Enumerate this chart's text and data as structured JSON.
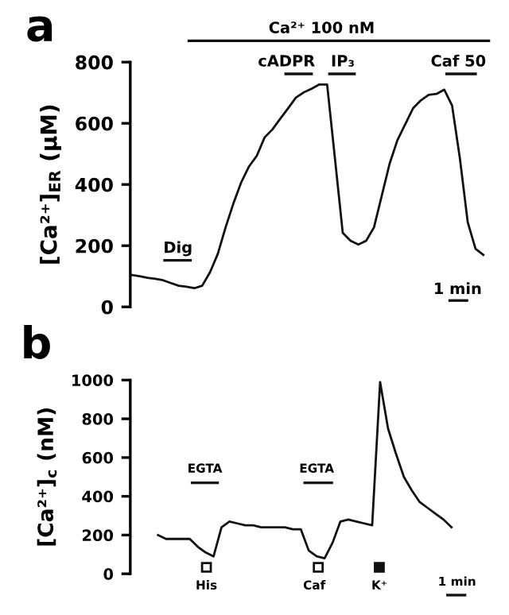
{
  "chart_data": [
    {
      "type": "line",
      "ylabel": "[Ca²⁺]$_{ER}$ (μM)",
      "categories": [
        null,
        null,
        null,
        null,
        null,
        null,
        null,
        null,
        null,
        null,
        null,
        null,
        null,
        null,
        null,
        null,
        null,
        null,
        null,
        null,
        null,
        null,
        null,
        null,
        null,
        null,
        null,
        null,
        null,
        null,
        null,
        null,
        null,
        null,
        null,
        null,
        null,
        null,
        null,
        null,
        null,
        null,
        null,
        null,
        null,
        null
      ],
      "series": [
        {
          "color": "#111111",
          "values": [
            104,
            100,
            95,
            92,
            87,
            78,
            69,
            66,
            61,
            69,
            113,
            173,
            260,
            338,
            407,
            459,
            494,
            554,
            580,
            615,
            649,
            684,
            701,
            713,
            727,
            727,
            485,
            242,
            216,
            204,
            216,
            260,
            364,
            468,
            545,
            597,
            649,
            675,
            693,
            696,
            710,
            658,
            485,
            277,
            190,
            170
          ]
        }
      ],
      "ylim": [
        0,
        800
      ],
      "yticks": [
        0,
        200,
        400,
        600,
        800
      ],
      "tick_labels": "y",
      "grid": false,
      "annotations": [
        "a",
        "Ca²⁺ 100 nM",
        "cADPR",
        "IP₃",
        "Caf 50",
        "Dig",
        "1 min"
      ]
    },
    {
      "type": "line",
      "ylabel": "[Ca²⁺]$_{c}$ (nM)",
      "categories": [
        null,
        null,
        null,
        null,
        null,
        null,
        null,
        null,
        null,
        null,
        null,
        null,
        null,
        null,
        null,
        null,
        null,
        null,
        null,
        null,
        null,
        null,
        null,
        null,
        null,
        null,
        null,
        null,
        null,
        null,
        null,
        null,
        null,
        null,
        null,
        null,
        null,
        null
      ],
      "series": [
        {
          "color": "#111111",
          "values": [
            200,
            180,
            180,
            180,
            180,
            140,
            110,
            90,
            240,
            270,
            260,
            250,
            250,
            240,
            240,
            240,
            240,
            230,
            230,
            120,
            90,
            80,
            160,
            270,
            280,
            270,
            260,
            250,
            990,
            750,
            620,
            500,
            430,
            370,
            340,
            310,
            280,
            240
          ]
        }
      ],
      "ylim": [
        0,
        1000
      ],
      "yticks": [
        0,
        200,
        400,
        600,
        800,
        1000
      ],
      "tick_labels": "y",
      "grid": false,
      "annotations": [
        "b",
        "EGTA",
        "EGTA",
        "His",
        "Caf",
        "K⁺",
        "1 min"
      ]
    }
  ]
}
